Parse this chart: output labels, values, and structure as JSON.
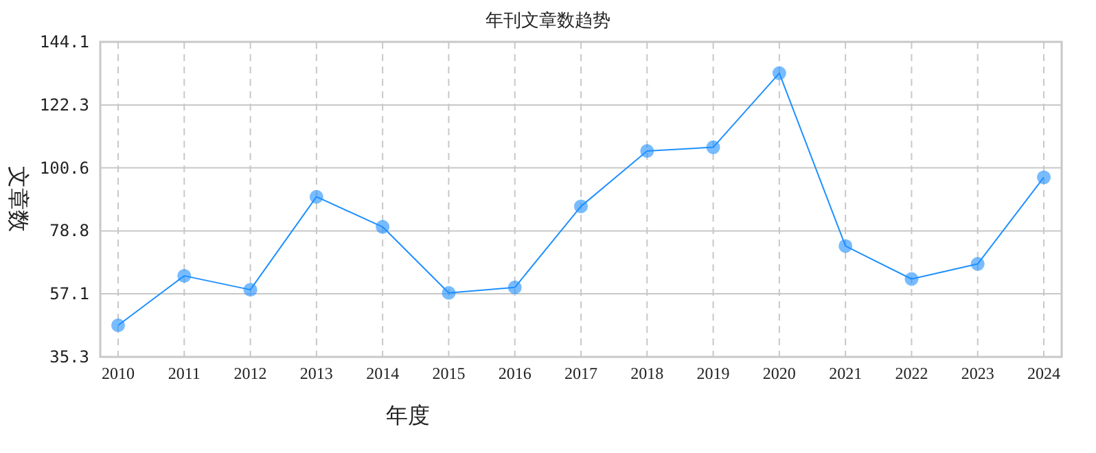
{
  "chart_data": {
    "type": "line",
    "title": "年刊文章数趋势",
    "xlabel": "年度",
    "ylabel": "文章数",
    "categories": [
      "2010",
      "2011",
      "2012",
      "2013",
      "2014",
      "2015",
      "2016",
      "2017",
      "2018",
      "2019",
      "2020",
      "2021",
      "2022",
      "2023",
      "2024"
    ],
    "series": [
      {
        "color": "#1e90ff",
        "values": [
          46.2,
          63.3,
          58.5,
          90.6,
          80.2,
          57.4,
          59.3,
          87.3,
          106.4,
          107.7,
          133.3,
          73.6,
          62.2,
          67.4,
          97.3
        ]
      }
    ],
    "ylim": [
      35.3,
      144.1
    ],
    "yticks": [
      {
        "value": 35.3,
        "label": "35.3"
      },
      {
        "value": 57.1,
        "label": "57.1"
      },
      {
        "value": 78.8,
        "label": "78.8"
      },
      {
        "value": 100.6,
        "label": "100.6"
      },
      {
        "value": 122.3,
        "label": "122.3"
      },
      {
        "value": 144.1,
        "label": "144.1"
      }
    ],
    "grid": true,
    "marker": "circle",
    "line_style": "solid"
  }
}
